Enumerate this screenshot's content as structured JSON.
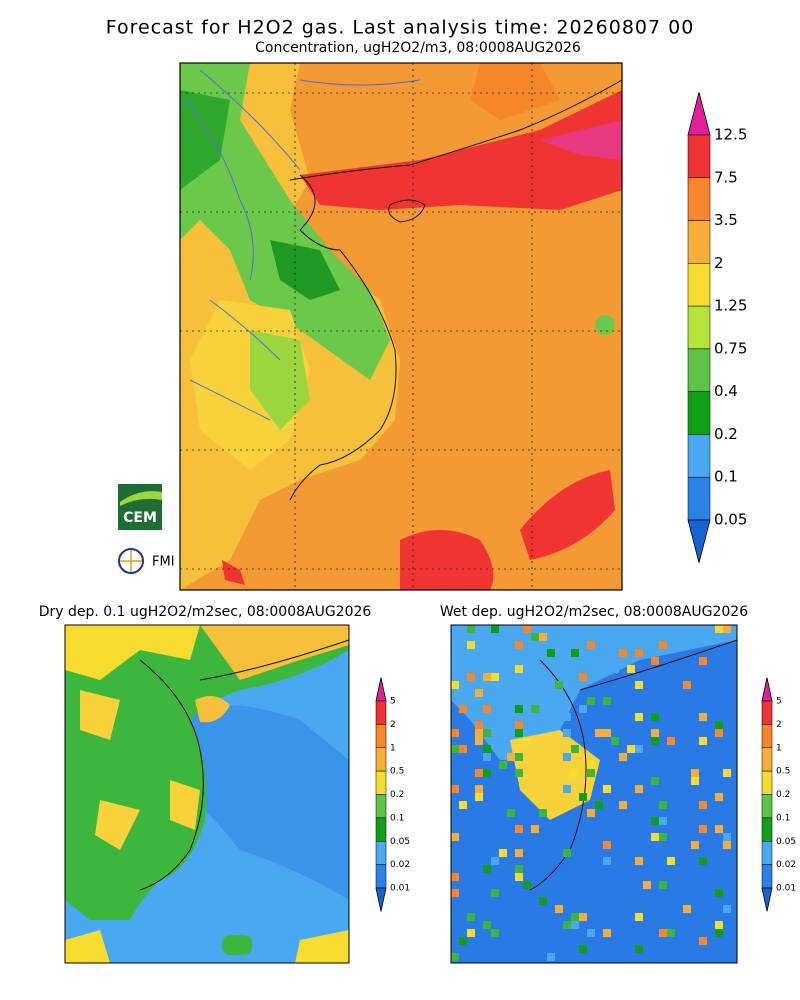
{
  "header": {
    "title": "Forecast for H2O2 gas. Last analysis time: 20260807 00",
    "subtitle": "Concentration, ugH2O2/m3, 08:0008AUG2026"
  },
  "logos": {
    "cem": "CEM",
    "fmi": "FMI"
  },
  "main_colorbar": {
    "labels": [
      "12.5",
      "7.5",
      "3.5",
      "2",
      "1.25",
      "0.75",
      "0.4",
      "0.2",
      "0.1",
      "0.05"
    ],
    "colors": [
      "#f03434",
      "#f5862c",
      "#f7ad3a",
      "#f7dc30",
      "#b4e33a",
      "#5cc346",
      "#10a018",
      "#4aa8f0",
      "#2a82e6"
    ],
    "over_color": "#e0209a",
    "under_color": "#1464d4"
  },
  "dry_panel": {
    "title": "Dry dep. 0.1 ugH2O2/m2sec, 08:0008AUG2026",
    "colorbar": {
      "labels": [
        "5",
        "2",
        "1",
        "0.5",
        "0.2",
        "0.1",
        "0.05",
        "0.02",
        "0.01"
      ],
      "colors": [
        "#f03434",
        "#f5862c",
        "#f7ad3a",
        "#f7dc30",
        "#5cc346",
        "#10a018",
        "#4aa8f0",
        "#2a82e6"
      ],
      "over_color": "#e0209a",
      "under_color": "#1464d4"
    }
  },
  "wet_panel": {
    "title": "Wet dep. ugH2O2/m2sec, 08:0008AUG2026",
    "colorbar": {
      "labels": [
        "5",
        "2",
        "1",
        "0.5",
        "0.2",
        "0.1",
        "0.05",
        "0.02",
        "0.01"
      ],
      "colors": [
        "#f03434",
        "#f5862c",
        "#f7ad3a",
        "#f7dc30",
        "#5cc346",
        "#10a018",
        "#4aa8f0",
        "#2a82e6"
      ],
      "over_color": "#e0209a",
      "under_color": "#1464d4"
    }
  }
}
